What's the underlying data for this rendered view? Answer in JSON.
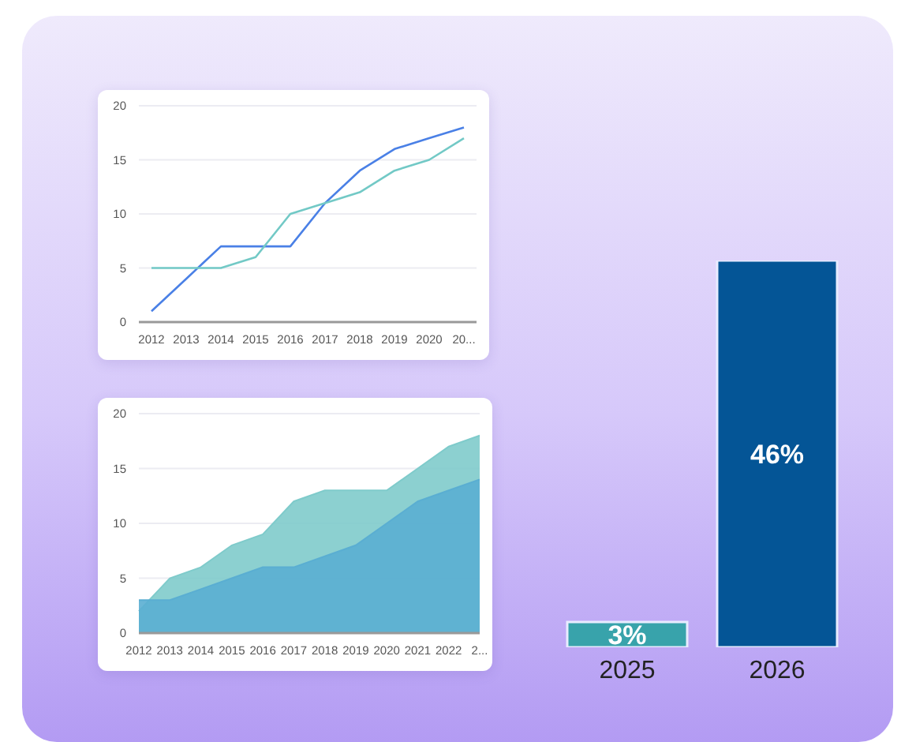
{
  "chart_data": [
    {
      "type": "line",
      "categories": [
        "2012",
        "2013",
        "2014",
        "2015",
        "2016",
        "2017",
        "2018",
        "2019",
        "2020",
        "20..."
      ],
      "ylim": [
        0,
        20
      ],
      "yticks": [
        0,
        5,
        10,
        15,
        20
      ],
      "grid": "y",
      "marker": "none",
      "line_style": "solid",
      "series": [
        {
          "color": "#4a80e6",
          "values": [
            1,
            4,
            7,
            7,
            7,
            11,
            14,
            16,
            17,
            18
          ]
        },
        {
          "color": "#72c9c6",
          "values": [
            5,
            5,
            5,
            6,
            10,
            11,
            12,
            14,
            15,
            17
          ]
        }
      ]
    },
    {
      "type": "area",
      "categories": [
        "2012",
        "2013",
        "2014",
        "2015",
        "2016",
        "2017",
        "2018",
        "2019",
        "2020",
        "2021",
        "2022",
        "2..."
      ],
      "ylim": [
        0,
        20
      ],
      "yticks": [
        0,
        5,
        10,
        15,
        20
      ],
      "grid": "y",
      "series": [
        {
          "color": "#7fcbcb",
          "values": [
            2,
            5,
            6,
            8,
            9,
            12,
            13,
            13,
            13,
            15,
            17,
            18
          ]
        },
        {
          "color": "#5aaed2",
          "values": [
            3,
            3,
            4,
            5,
            6,
            6,
            7,
            8,
            10,
            12,
            13,
            14
          ]
        }
      ]
    },
    {
      "type": "bar",
      "categories": [
        "2025",
        "2026"
      ],
      "values": [
        3,
        46
      ],
      "colors": [
        "#38a3ab",
        "#045596"
      ],
      "data_labels": true,
      "value_labels": [
        "3%",
        "46%"
      ]
    }
  ]
}
